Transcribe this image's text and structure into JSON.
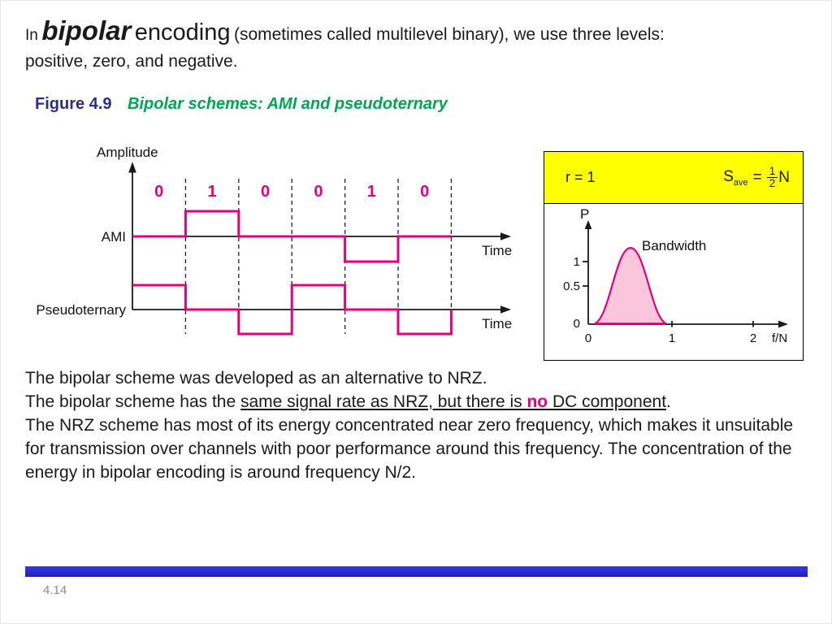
{
  "slide": {
    "intro": {
      "prefix": "In",
      "term_bold": "bipolar",
      "term_large": "encoding",
      "line1_rest": "(sometimes called multilevel binary),  we use three levels:",
      "line2": "positive, zero, and negative."
    },
    "caption": {
      "label": "Figure 4.9",
      "title": "Bipolar schemes: AMI and pseudoternary"
    },
    "figure": {
      "amplitude_label": "Amplitude",
      "bits": [
        "0",
        "1",
        "0",
        "0",
        "1",
        "0"
      ],
      "ami_label": "AMI",
      "pseudo_label": "Pseudoternary",
      "ami_time_label": "Time",
      "pseudo_time_label": "Time"
    },
    "bandwidth_panel": {
      "r_label": "r = 1",
      "s_base": "S",
      "s_sub": "ave",
      "equals": "=",
      "frac_num": "1",
      "frac_den": "2",
      "n_label": "N",
      "p_label": "P",
      "bandwidth_label": "Bandwidth",
      "y_ticks": [
        "1",
        "0.5",
        "0"
      ],
      "x_ticks": [
        "0",
        "1",
        "2"
      ],
      "x_axis_label": "f/N"
    },
    "body": {
      "line1": "The bipolar scheme was developed as an alternative to NRZ.",
      "line2_prefix": "The bipolar scheme has the ",
      "line2_underline_a": "same signal rate as NRZ, but there is ",
      "line2_no": "no",
      "line2_underline_b": " DC component",
      "line2_suffix": ".",
      "paragraph": "The NRZ scheme has most of its energy concentrated near zero frequency, which makes it unsuitable for transmission over channels with poor performance around this frequency. The concentration of the energy in bipolar encoding is around frequency N/2."
    },
    "footer": {
      "page_number": "4.14"
    },
    "colors": {
      "magenta": "#E4007C",
      "figure_label_blue": "#2D2E87",
      "figure_title_green": "#00A651",
      "footer_bar_blue": "#2222CC",
      "panel_yellow": "#FFFF00",
      "curve_fill": "#F9C6DC"
    }
  },
  "chart_data": [
    {
      "type": "line",
      "title": "AMI waveform",
      "categories": [
        "0",
        "1",
        "0",
        "0",
        "1",
        "0"
      ],
      "levels": [
        0,
        1,
        0,
        0,
        -1,
        0
      ],
      "xlabel": "Time",
      "ylabel": "Amplitude"
    },
    {
      "type": "line",
      "title": "Pseudoternary waveform",
      "categories": [
        "0",
        "1",
        "0",
        "0",
        "1",
        "0"
      ],
      "levels": [
        1,
        0,
        -1,
        1,
        0,
        -1
      ],
      "xlabel": "Time",
      "ylabel": "Amplitude"
    },
    {
      "type": "area",
      "title": "Bandwidth",
      "xlabel": "f/N",
      "ylabel": "P",
      "x": [
        0,
        0.5,
        1
      ],
      "y": [
        0,
        1,
        0
      ],
      "x_ticks": [
        0,
        1,
        2
      ],
      "y_ticks": [
        0,
        0.5,
        1
      ],
      "xlim": [
        0,
        2.3
      ],
      "legend": false,
      "grid": false
    }
  ]
}
